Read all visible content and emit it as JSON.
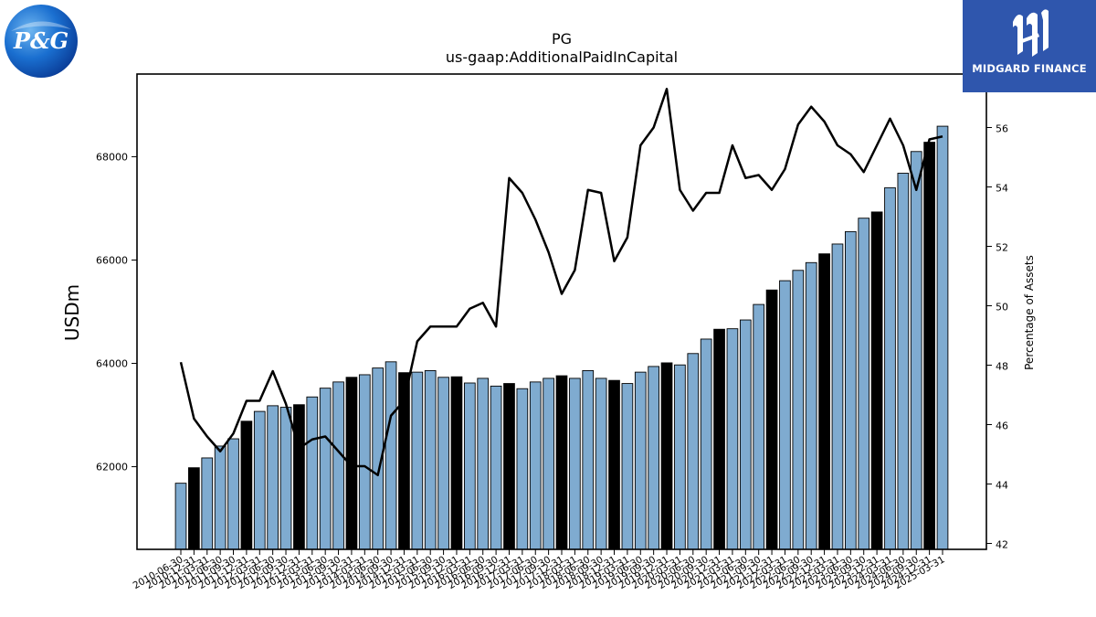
{
  "logos": {
    "left_text": "P&G",
    "right_text": "MIDGARD FINANCE"
  },
  "chart_data": {
    "type": "bar",
    "title": "PG",
    "subtitle": "us-gaap:AdditionalPaidInCapital",
    "ylabel": "USDm",
    "y2label": "Percentage of Assets",
    "ylim": [
      60400,
      69600
    ],
    "y2lim": [
      41.8,
      57.8
    ],
    "yticks": [
      62000,
      64000,
      66000,
      68000
    ],
    "y2ticks": [
      42,
      44,
      46,
      48,
      50,
      52,
      54,
      56
    ],
    "grid": false,
    "legend": "none",
    "colors": {
      "bar": "#7fabd0",
      "bar_highlight": "#000000",
      "line": "#000000"
    },
    "categories": [
      "2010-06-30",
      "2010-12-31",
      "2011-03-31",
      "2011-06-30",
      "2011-09-30",
      "2011-12-31",
      "2012-03-31",
      "2012-06-30",
      "2012-09-30",
      "2012-12-31",
      "2013-03-31",
      "2013-06-30",
      "2013-09-30",
      "2013-12-31",
      "2014-03-31",
      "2014-06-30",
      "2014-09-30",
      "2014-12-31",
      "2015-03-31",
      "2015-06-30",
      "2015-09-30",
      "2015-12-31",
      "2016-03-31",
      "2016-06-30",
      "2016-09-30",
      "2016-12-31",
      "2017-03-31",
      "2017-06-30",
      "2017-09-30",
      "2017-12-31",
      "2018-03-31",
      "2018-06-30",
      "2018-09-30",
      "2018-12-31",
      "2019-03-31",
      "2019-06-30",
      "2019-09-30",
      "2019-12-31",
      "2020-03-31",
      "2020-06-30",
      "2020-09-30",
      "2020-12-31",
      "2021-03-31",
      "2021-06-30",
      "2021-09-30",
      "2021-12-31",
      "2022-03-31",
      "2022-06-30",
      "2022-09-30",
      "2022-12-31",
      "2023-03-31",
      "2023-06-30",
      "2023-09-30",
      "2023-12-31",
      "2024-03-31",
      "2024-06-30",
      "2024-09-30",
      "2024-12-31",
      "2025-03-31"
    ],
    "series": [
      {
        "type": "bar",
        "values": [
          61680,
          61980,
          62170,
          62400,
          62540,
          62880,
          63070,
          63180,
          63150,
          63200,
          63350,
          63520,
          63640,
          63730,
          63780,
          63910,
          64030,
          63820,
          63830,
          63860,
          63730,
          63740,
          63620,
          63710,
          63560,
          63610,
          63510,
          63640,
          63710,
          63760,
          63710,
          63860,
          63710,
          63670,
          63610,
          63830,
          63940,
          64010,
          63970,
          64190,
          64470,
          64660,
          64670,
          64840,
          65140,
          65420,
          65600,
          65800,
          65950,
          66120,
          66310,
          66550,
          66810,
          66930,
          67400,
          67680,
          68100,
          68280,
          68590
        ],
        "highlight": [
          false,
          true,
          false,
          false,
          false,
          true,
          false,
          false,
          false,
          true,
          false,
          false,
          false,
          true,
          false,
          false,
          false,
          true,
          false,
          false,
          false,
          true,
          false,
          false,
          false,
          true,
          false,
          false,
          false,
          true,
          false,
          false,
          false,
          true,
          false,
          false,
          false,
          true,
          false,
          false,
          false,
          true,
          false,
          false,
          false,
          true,
          false,
          false,
          false,
          true,
          false,
          false,
          false,
          true,
          false,
          false,
          false,
          true,
          false
        ]
      },
      {
        "type": "line",
        "axis": "right",
        "values": [
          48.1,
          46.2,
          45.6,
          45.1,
          45.7,
          46.8,
          46.8,
          47.8,
          46.7,
          45.2,
          45.5,
          45.6,
          45.1,
          44.6,
          44.6,
          44.3,
          46.3,
          46.8,
          48.8,
          49.3,
          49.3,
          49.3,
          49.9,
          50.1,
          49.3,
          54.3,
          53.8,
          52.9,
          51.8,
          50.4,
          51.2,
          53.9,
          53.8,
          51.5,
          52.3,
          55.4,
          56.0,
          57.3,
          53.9,
          53.2,
          53.8,
          53.8,
          55.4,
          54.3,
          54.4,
          53.9,
          54.6,
          56.1,
          56.7,
          56.2,
          55.4,
          55.1,
          54.5,
          55.4,
          56.3,
          55.4,
          53.9,
          55.6,
          55.7
        ]
      }
    ]
  }
}
